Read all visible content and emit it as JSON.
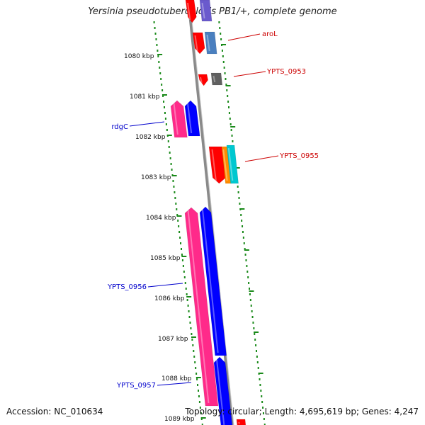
{
  "title": "Yersinia pseudotuberculosis PB1/+, complete genome",
  "footer": {
    "accession": "Accession: NC_010634",
    "topology": "Topology: circular; Length: 4,695,619 bp; Genes: 4,247"
  },
  "scale_ticks": [
    {
      "label": "1080 kbp"
    },
    {
      "label": "1081 kbp"
    },
    {
      "label": "1082 kbp"
    },
    {
      "label": "1083 kbp"
    },
    {
      "label": "1084 kbp"
    },
    {
      "label": "1085 kbp"
    },
    {
      "label": "1086 kbp"
    },
    {
      "label": "1087 kbp"
    },
    {
      "label": "1088 kbp"
    },
    {
      "label": "1089 kbp"
    }
  ],
  "gene_labels": [
    {
      "name": "aroL",
      "strand": "forward",
      "color": "#cc0000"
    },
    {
      "name": "YPTS_0953",
      "strand": "forward",
      "color": "#cc0000"
    },
    {
      "name": "rdgC",
      "strand": "reverse",
      "color": "#0000cc"
    },
    {
      "name": "YPTS_0955",
      "strand": "forward",
      "color": "#cc0000"
    },
    {
      "name": "YPTS_0956",
      "strand": "reverse",
      "color": "#0000cc"
    },
    {
      "name": "YPTS_0957",
      "strand": "reverse",
      "color": "#0000cc"
    }
  ],
  "colors": {
    "backbone": "#8a8a8a",
    "tick": "#1a8a1a",
    "forward_gene": "#ff0000",
    "reverse_gene": "#0000ff",
    "reverse_feature": "#ff2a8a"
  }
}
